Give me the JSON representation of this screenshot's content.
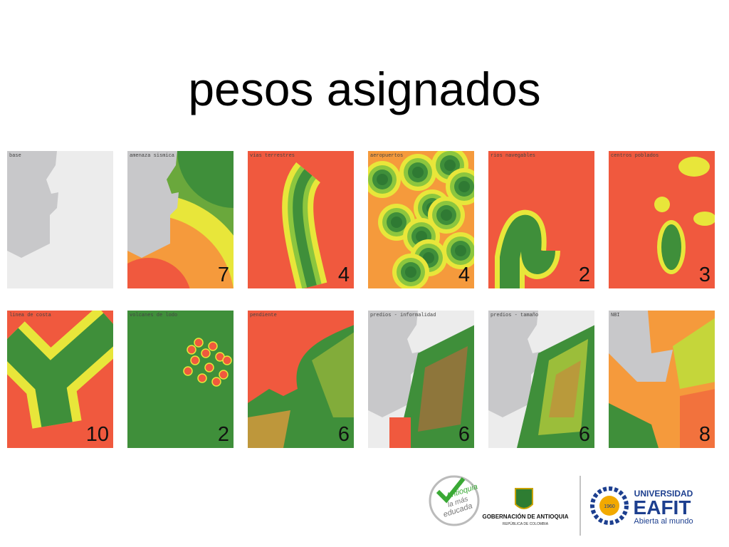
{
  "title": "pesos asignados",
  "panels": [
    {
      "label": "base"
    },
    {
      "label": "amenaza sismica",
      "weight": "7"
    },
    {
      "label": "vias terrestres",
      "weight": "4"
    },
    {
      "label": "aeropuertos",
      "weight": "4"
    },
    {
      "label": "rios navegables",
      "weight": "2"
    },
    {
      "label": "centros poblados",
      "weight": "3"
    },
    {
      "label": "linea de costa",
      "weight": "10"
    },
    {
      "label": "volcanes de lodo",
      "weight": "2"
    },
    {
      "label": "pendiente",
      "weight": "6"
    },
    {
      "label": "predios - informalidad",
      "weight": "6"
    },
    {
      "label": "predios - tamaño",
      "weight": "6"
    },
    {
      "label": "NBI",
      "weight": "8"
    }
  ],
  "logos": {
    "antioquia": [
      "Antioquia",
      "la más",
      "educada"
    ],
    "gobernacion": {
      "name": "GOBERNACIÓN DE ANTIOQUIA",
      "sub": "REPÚBLICA DE COLOMBIA"
    },
    "eafit": {
      "top": "UNIVERSIDAD",
      "name": "EAFIT",
      "year": "1960",
      "slogan": "Abierta al mundo"
    }
  }
}
